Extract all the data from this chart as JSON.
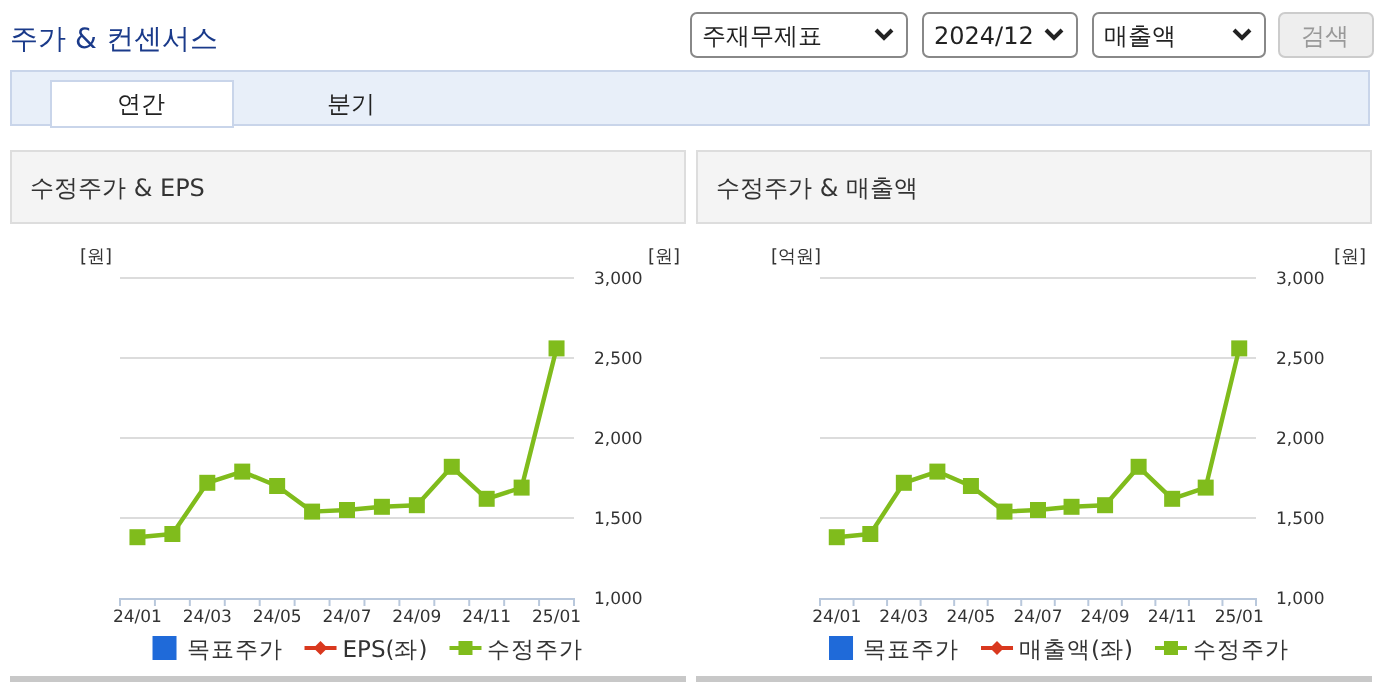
{
  "chart_data": [
    {
      "type": "other",
      "title": "주가 & 컨센서스",
      "annotations": [
        "주재무제표",
        "2024/12",
        "매출액",
        "검색",
        "연간",
        "분기"
      ]
    },
    {
      "type": "line",
      "title": "수정주가 & EPS",
      "ylabel": "[원]",
      "y2label": "[원]",
      "categories": [
        "24/01",
        null,
        "24/03",
        null,
        "24/05",
        null,
        "24/07",
        null,
        "24/09",
        null,
        "24/11",
        null,
        "25/01"
      ],
      "y2lim": [
        1000,
        3000
      ],
      "y2ticks": [
        {
          "value": 1000,
          "label": "1,000"
        },
        {
          "value": 1500,
          "label": "1,500"
        },
        {
          "value": 2000,
          "label": "2,000"
        },
        {
          "value": 2500,
          "label": "2,500"
        },
        {
          "value": 3000,
          "label": "3,000"
        }
      ],
      "grid": true,
      "legend": "bottom",
      "marker": "square",
      "series": [
        {
          "name": "목표주가",
          "type": "bar",
          "color": "#1f6ad9",
          "values": [
            null,
            null,
            null,
            null,
            null,
            null,
            null,
            null,
            null,
            null,
            null,
            null,
            null
          ]
        },
        {
          "name": "EPS(좌)",
          "color": "#d9381e",
          "marker": "diamond",
          "values": [
            null,
            null,
            null,
            null,
            null,
            null,
            null,
            null,
            null,
            null,
            null,
            null,
            null
          ]
        },
        {
          "name": "수정주가",
          "color": "#80bc1c",
          "axis": "y2",
          "values": [
            1380,
            1400,
            1720,
            1790,
            1700,
            1540,
            1550,
            1570,
            1580,
            1820,
            1620,
            1690,
            2560
          ]
        }
      ]
    },
    {
      "type": "line",
      "title": "수정주가 & 매출액",
      "ylabel": "[억원]",
      "y2label": "[원]",
      "categories": [
        "24/01",
        null,
        "24/03",
        null,
        "24/05",
        null,
        "24/07",
        null,
        "24/09",
        null,
        "24/11",
        null,
        "25/01"
      ],
      "y2lim": [
        1000,
        3000
      ],
      "y2ticks": [
        {
          "value": 1000,
          "label": "1,000"
        },
        {
          "value": 1500,
          "label": "1,500"
        },
        {
          "value": 2000,
          "label": "2,000"
        },
        {
          "value": 2500,
          "label": "2,500"
        },
        {
          "value": 3000,
          "label": "3,000"
        }
      ],
      "grid": true,
      "legend": "bottom",
      "marker": "square",
      "series": [
        {
          "name": "목표주가",
          "type": "bar",
          "color": "#1f6ad9",
          "values": [
            null,
            null,
            null,
            null,
            null,
            null,
            null,
            null,
            null,
            null,
            null,
            null,
            null
          ]
        },
        {
          "name": "매출액(좌)",
          "color": "#d9381e",
          "marker": "diamond",
          "values": [
            null,
            null,
            null,
            null,
            null,
            null,
            null,
            null,
            null,
            null,
            null,
            null,
            null
          ]
        },
        {
          "name": "수정주가",
          "color": "#80bc1c",
          "axis": "y2",
          "values": [
            1380,
            1400,
            1720,
            1790,
            1700,
            1540,
            1550,
            1570,
            1580,
            1820,
            1620,
            1690,
            2560
          ]
        }
      ]
    }
  ]
}
